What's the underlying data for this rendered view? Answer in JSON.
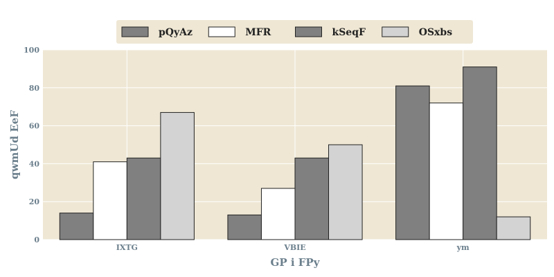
{
  "chart_data": {
    "type": "bar",
    "title": "",
    "xlabel": "GP i FPy",
    "ylabel": "qwmUd EeF",
    "categories": [
      "IXTG",
      "VBIE",
      "ym"
    ],
    "ylim": [
      0,
      100
    ],
    "yticks": [
      0,
      20,
      40,
      60,
      80,
      100
    ],
    "grid": true,
    "legend_position": "top-center",
    "series": [
      {
        "name": "pQyAz",
        "values": [
          14,
          13,
          81
        ],
        "color": "#808080"
      },
      {
        "name": "MFR",
        "values": [
          41,
          27,
          72
        ],
        "color": "#ffffff"
      },
      {
        "name": "kSeqF",
        "values": [
          43,
          43,
          91
        ],
        "color": "#808080"
      },
      {
        "name": "OSxbs",
        "values": [
          67,
          50,
          12
        ],
        "color": "#d3d3d3"
      }
    ],
    "colors": {
      "background": "#efe7d4",
      "grid": "#ffffff",
      "bar_edge": "#222222",
      "text": "#6b7f8c"
    }
  }
}
